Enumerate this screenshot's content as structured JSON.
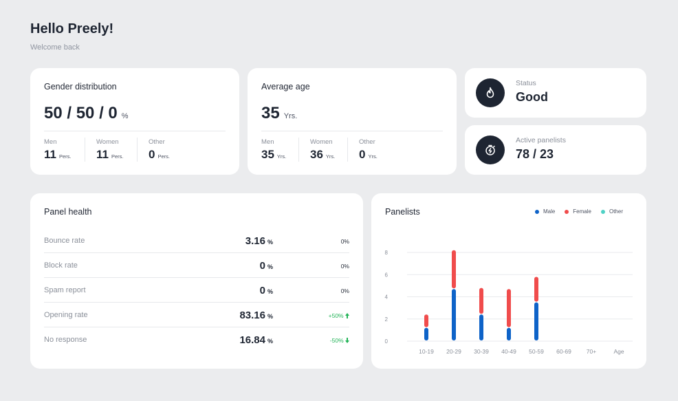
{
  "header": {
    "greeting": "Hello Preely!",
    "subtitle": "Welcome back"
  },
  "gender": {
    "title": "Gender distribution",
    "value": "50 / 50 / 0",
    "unit": "%",
    "stats": [
      {
        "label": "Men",
        "value": "11",
        "unit": "Pers."
      },
      {
        "label": "Women",
        "value": "11",
        "unit": "Pers."
      },
      {
        "label": "Other",
        "value": "0",
        "unit": "Pers."
      }
    ]
  },
  "age": {
    "title": "Average age",
    "value": "35",
    "unit": "Yrs.",
    "stats": [
      {
        "label": "Men",
        "value": "35",
        "unit": "Yrs."
      },
      {
        "label": "Women",
        "value": "36",
        "unit": "Yrs."
      },
      {
        "label": "Other",
        "value": "0",
        "unit": "Yrs."
      }
    ]
  },
  "status": {
    "label": "Status",
    "value": "Good",
    "icon": "flame-icon"
  },
  "panelists_active": {
    "label": "Active panelists",
    "value": "78 / 23",
    "icon": "stopwatch-bolt-icon"
  },
  "health": {
    "title": "Panel health",
    "rows": [
      {
        "name": "Bounce rate",
        "value": "3.16",
        "unit": "%",
        "change": "0%",
        "trend": "none"
      },
      {
        "name": "Block rate",
        "value": "0",
        "unit": "%",
        "change": "0%",
        "trend": "none"
      },
      {
        "name": "Spam report",
        "value": "0",
        "unit": "%",
        "change": "0%",
        "trend": "none"
      },
      {
        "name": "Opening rate",
        "value": "83.16",
        "unit": "%",
        "change": "+50%",
        "trend": "up"
      },
      {
        "name": "No response",
        "value": "16.84",
        "unit": "%",
        "change": "-50%",
        "trend": "down"
      }
    ]
  },
  "panelists_chart": {
    "title": "Panelists",
    "colors": {
      "male": "#0e63c8",
      "female": "#f04c4c",
      "other": "#4fd1c5"
    }
  },
  "chart_data": {
    "type": "bar",
    "stacked": true,
    "categories": [
      "10-19",
      "20-29",
      "30-39",
      "40-49",
      "50-59",
      "60-69",
      "70+"
    ],
    "xlabel": "Age",
    "ylim": [
      0,
      8
    ],
    "yticks": [
      0,
      2,
      4,
      6,
      8
    ],
    "series": [
      {
        "name": "Male",
        "color": "#0e63c8",
        "values": [
          1.2,
          4.7,
          2.4,
          1.2,
          3.5,
          0,
          0
        ]
      },
      {
        "name": "Female",
        "color": "#f04c4c",
        "values": [
          1.2,
          3.5,
          2.4,
          3.5,
          2.3,
          0,
          0
        ]
      },
      {
        "name": "Other",
        "color": "#4fd1c5",
        "values": [
          0,
          0,
          0,
          0,
          0,
          0,
          0
        ]
      }
    ],
    "legend": "top-right",
    "grid": true
  }
}
